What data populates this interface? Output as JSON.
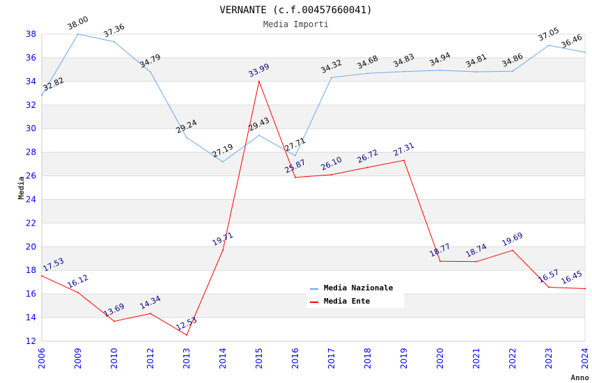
{
  "chart_data": {
    "type": "line",
    "title": "VERNANTE (c.f.00457660041)",
    "subtitle": "Media Importi",
    "xlabel": "Anno",
    "ylabel": "Media",
    "ylim": [
      12,
      38
    ],
    "yticks": [
      12,
      14,
      16,
      18,
      20,
      22,
      24,
      26,
      28,
      30,
      32,
      34,
      36,
      38
    ],
    "categories": [
      "2006",
      "2009",
      "2010",
      "2012",
      "2013",
      "2014",
      "2015",
      "2016",
      "2017",
      "2018",
      "2019",
      "2020",
      "2021",
      "2022",
      "2023",
      "2024"
    ],
    "legend_position": "top-right",
    "series": [
      {
        "name": "Media Nazionale",
        "color": "#66aaee",
        "label_color": "#000000",
        "values": [
          32.82,
          38.0,
          37.36,
          34.79,
          29.24,
          27.19,
          29.43,
          27.71,
          34.32,
          34.68,
          34.83,
          34.94,
          34.81,
          34.86,
          37.05,
          36.46
        ]
      },
      {
        "name": "Media Ente",
        "color": "#ff0000",
        "label_color": "#000080",
        "values": [
          17.53,
          16.12,
          13.69,
          14.34,
          12.53,
          19.71,
          33.99,
          25.87,
          26.1,
          26.72,
          27.31,
          18.77,
          18.74,
          19.69,
          16.57,
          16.45
        ]
      }
    ]
  }
}
